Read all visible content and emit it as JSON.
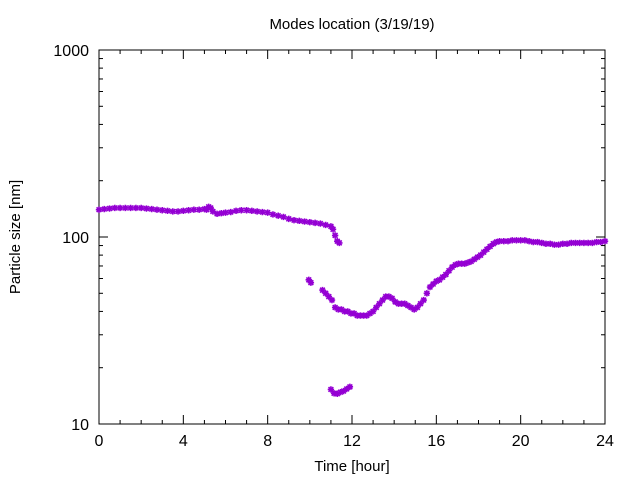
{
  "chart_data": {
    "type": "scatter",
    "title": "Modes location (3/19/19)",
    "xlabel": "Time [hour]",
    "ylabel": "Particle size [nm]",
    "xlim": [
      0,
      24
    ],
    "ylim": [
      10,
      1000
    ],
    "yscale": "log",
    "x_ticks": [
      0,
      4,
      8,
      12,
      16,
      20,
      24
    ],
    "x_tick_labels": [
      "0",
      "4",
      "8",
      "12",
      "16",
      "20",
      "24"
    ],
    "y_ticks": [
      10,
      100,
      1000
    ],
    "y_tick_labels": [
      "10",
      "100",
      "1000"
    ],
    "grid": false,
    "legend": "none",
    "marker_color": "#9400d3",
    "series": [
      {
        "x": [
          0.0,
          0.25,
          0.5,
          0.75,
          1.0,
          1.25,
          1.5,
          1.75,
          2.0,
          2.25,
          2.5,
          2.75,
          3.0,
          3.25,
          3.5,
          3.75,
          4.0,
          4.25,
          4.5,
          4.75,
          5.0,
          5.1,
          5.2,
          5.3,
          5.4,
          5.6,
          5.8,
          6.0,
          6.25,
          6.5,
          6.75,
          7.0,
          7.25,
          7.5,
          7.75,
          8.0,
          8.25,
          8.5,
          8.75,
          9.0,
          9.25,
          9.5,
          9.75,
          10.0,
          10.25,
          10.5,
          10.75,
          11.0,
          11.1,
          11.2,
          11.3,
          11.4
        ],
        "y": [
          140,
          141,
          142,
          143,
          143,
          143,
          143,
          143,
          143,
          142,
          141,
          140,
          139,
          138,
          137,
          137,
          138,
          139,
          140,
          140,
          141,
          140,
          145,
          143,
          137,
          133,
          134,
          135,
          136,
          138,
          139,
          139,
          138,
          137,
          136,
          135,
          132,
          130,
          128,
          125,
          123,
          122,
          121,
          120,
          119,
          118,
          116,
          114,
          110,
          102,
          95,
          93
        ]
      },
      {
        "x": [
          9.95,
          10.05,
          10.6,
          10.75,
          10.9,
          11.05,
          11.2,
          11.35,
          11.5,
          11.65,
          11.8,
          11.95,
          12.1,
          12.25,
          12.4,
          12.55,
          12.7,
          12.85,
          13.0,
          13.15,
          13.3,
          13.45,
          13.6,
          13.75,
          13.9,
          14.05,
          14.2,
          14.35,
          14.5,
          14.65,
          14.8,
          14.95,
          15.1,
          15.25,
          15.4,
          15.55,
          15.7,
          15.85,
          16.0,
          16.15,
          16.3,
          16.45,
          16.6,
          16.75,
          16.9,
          17.05,
          17.2,
          17.35,
          17.5,
          17.65,
          17.8,
          17.95,
          18.1,
          18.25,
          18.4,
          18.55,
          18.7,
          18.85,
          19.0,
          19.2,
          19.4,
          19.6,
          19.8,
          20.0,
          20.2,
          20.4,
          20.6,
          20.8,
          21.0,
          21.2,
          21.4,
          21.6,
          21.8,
          22.0,
          22.2,
          22.4,
          22.6,
          22.8,
          23.0,
          23.2,
          23.4,
          23.6,
          23.8,
          24.0
        ],
        "y": [
          59,
          57,
          52,
          50,
          48,
          46,
          42,
          41,
          41,
          40,
          40,
          39,
          39,
          38,
          38,
          38,
          38,
          39,
          40,
          42,
          44,
          46,
          48,
          48,
          47,
          45,
          44,
          44,
          44,
          43,
          42,
          41,
          42,
          44,
          46,
          50,
          54,
          56,
          58,
          59,
          61,
          63,
          66,
          69,
          71,
          72,
          72,
          72,
          73,
          74,
          76,
          78,
          80,
          83,
          86,
          89,
          92,
          94,
          95,
          95,
          95,
          96,
          96,
          96,
          96,
          95,
          94,
          94,
          93,
          92,
          92,
          91,
          91,
          92,
          92,
          93,
          93,
          93,
          93,
          93,
          93,
          94,
          94,
          95
        ]
      },
      {
        "x": [
          11.0,
          11.15,
          11.3,
          11.45,
          11.6,
          11.75,
          11.9
        ],
        "y": [
          15.3,
          14.6,
          14.5,
          14.8,
          15.0,
          15.4,
          15.8
        ]
      }
    ]
  }
}
